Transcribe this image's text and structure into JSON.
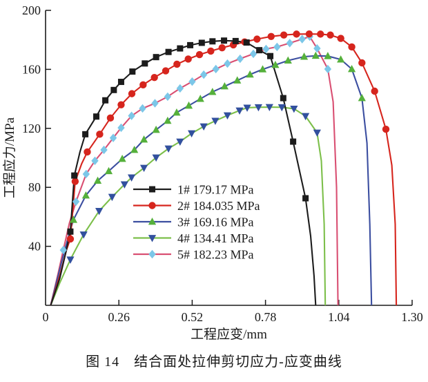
{
  "figure": {
    "caption": "图 14　结合面处拉伸剪切应力-应变曲线"
  },
  "style": {
    "background": "#ffffff",
    "axis_color": "#1a1a1a",
    "text_color": "#1a1a1a"
  },
  "chart_data": {
    "type": "line",
    "title": "",
    "xlabel": "工程应变/mm",
    "ylabel": "工程应力/MPa",
    "xlim": [
      0,
      1.3
    ],
    "ylim": [
      0,
      200
    ],
    "xticks": [
      0,
      0.26,
      0.52,
      0.78,
      1.04,
      1.3
    ],
    "xtick_labels": [
      "0",
      "0.26",
      "0.52",
      "0.78",
      "1.04",
      "1.30"
    ],
    "yticks": [
      40,
      80,
      120,
      160,
      200
    ],
    "ytick_labels": [
      "40",
      "80",
      "120",
      "160",
      "200"
    ],
    "grid": false,
    "legend_position": "inside-center-left",
    "series": [
      {
        "name": "5# 182.23 MPa",
        "sample": "5#",
        "peak_mpa": 182.23,
        "line_color": "#d94f72",
        "marker_color": "#7cc7e8",
        "marker": "diamond",
        "points": [
          [
            0.018,
            0,
            0
          ],
          [
            0.045,
            22,
            0
          ],
          [
            0.063,
            37.5,
            1
          ],
          [
            0.085,
            56,
            0
          ],
          [
            0.108,
            70.3,
            1
          ],
          [
            0.144,
            89,
            1
          ],
          [
            0.175,
            98,
            1
          ],
          [
            0.207,
            105.4,
            1
          ],
          [
            0.24,
            113.5,
            1
          ],
          [
            0.268,
            120.4,
            1
          ],
          [
            0.305,
            128.5,
            1
          ],
          [
            0.344,
            133.5,
            1
          ],
          [
            0.388,
            137,
            1
          ],
          [
            0.433,
            141.5,
            1
          ],
          [
            0.477,
            147.1,
            1
          ],
          [
            0.52,
            151.7,
            1
          ],
          [
            0.561,
            156.4,
            1
          ],
          [
            0.604,
            160.2,
            1
          ],
          [
            0.645,
            163.9,
            1
          ],
          [
            0.69,
            167.2,
            1
          ],
          [
            0.737,
            170.5,
            1
          ],
          [
            0.782,
            173.8,
            1
          ],
          [
            0.821,
            175.2,
            1
          ],
          [
            0.866,
            177.8,
            1
          ],
          [
            0.91,
            180.5,
            1
          ],
          [
            0.937,
            182.2,
            1
          ],
          [
            0.963,
            174.2,
            1
          ],
          [
            1.001,
            160.2,
            1
          ],
          [
            1.02,
            138,
            0
          ],
          [
            1.032,
            80,
            0
          ],
          [
            1.037,
            0,
            0
          ]
        ]
      },
      {
        "name": "4# 134.41 MPa",
        "sample": "4#",
        "peak_mpa": 134.41,
        "line_color": "#7cbf4a",
        "marker_color": "#32509e",
        "marker": "triangle-down",
        "points": [
          [
            0.018,
            0,
            0
          ],
          [
            0.05,
            15,
            0
          ],
          [
            0.088,
            31,
            1
          ],
          [
            0.135,
            48,
            1
          ],
          [
            0.19,
            64,
            1
          ],
          [
            0.236,
            73.5,
            1
          ],
          [
            0.28,
            82,
            1
          ],
          [
            0.305,
            86.7,
            1
          ],
          [
            0.349,
            93.2,
            1
          ],
          [
            0.392,
            100.2,
            1
          ],
          [
            0.436,
            106.3,
            1
          ],
          [
            0.477,
            111,
            1
          ],
          [
            0.518,
            116.6,
            1
          ],
          [
            0.561,
            121.3,
            1
          ],
          [
            0.602,
            125.1,
            1
          ],
          [
            0.645,
            128.8,
            1
          ],
          [
            0.688,
            132.1,
            1
          ],
          [
            0.715,
            134,
            1
          ],
          [
            0.755,
            134.3,
            1
          ],
          [
            0.794,
            134.4,
            1
          ],
          [
            0.838,
            134.3,
            1
          ],
          [
            0.881,
            133.3,
            1
          ],
          [
            0.922,
            128.3,
            1
          ],
          [
            0.963,
            117.1,
            1
          ],
          [
            0.978,
            98,
            0
          ],
          [
            0.988,
            55,
            0
          ],
          [
            0.992,
            0,
            0
          ]
        ]
      },
      {
        "name": "3# 169.16 MPa",
        "sample": "3#",
        "peak_mpa": 169.16,
        "line_color": "#3b4ea0",
        "marker_color": "#55b03b",
        "marker": "triangle-up",
        "points": [
          [
            0.018,
            0,
            0
          ],
          [
            0.055,
            28,
            0
          ],
          [
            0.08,
            46,
            0
          ],
          [
            0.099,
            58,
            1
          ],
          [
            0.143,
            74.5,
            1
          ],
          [
            0.185,
            84.5,
            1
          ],
          [
            0.224,
            91,
            1
          ],
          [
            0.272,
            99.3,
            1
          ],
          [
            0.315,
            105.4,
            1
          ],
          [
            0.349,
            112.4,
            1
          ],
          [
            0.392,
            119,
            1
          ],
          [
            0.433,
            125.1,
            1
          ],
          [
            0.465,
            130.7,
            1
          ],
          [
            0.508,
            135.4,
            1
          ],
          [
            0.549,
            140,
            1
          ],
          [
            0.592,
            144.7,
            1
          ],
          [
            0.635,
            148.5,
            1
          ],
          [
            0.68,
            152.5,
            1
          ],
          [
            0.725,
            156.5,
            1
          ],
          [
            0.77,
            160,
            1
          ],
          [
            0.815,
            163,
            1
          ],
          [
            0.86,
            166,
            1
          ],
          [
            0.917,
            168.6,
            1
          ],
          [
            0.958,
            169.2,
            1
          ],
          [
            1.001,
            169,
            1
          ],
          [
            1.047,
            166.7,
            1
          ],
          [
            1.086,
            160.2,
            1
          ],
          [
            1.122,
            140.5,
            1
          ],
          [
            1.14,
            110,
            0
          ],
          [
            1.15,
            55,
            0
          ],
          [
            1.156,
            0,
            0
          ]
        ]
      },
      {
        "name": "2# 184.035 MPa",
        "sample": "2#",
        "peak_mpa": 184.035,
        "line_color": "#d6251d",
        "marker_color": "#d6251d",
        "marker": "circle",
        "points": [
          [
            0.018,
            0,
            0
          ],
          [
            0.05,
            20,
            0
          ],
          [
            0.075,
            38,
            0
          ],
          [
            0.088,
            45,
            1
          ],
          [
            0.105,
            84,
            1
          ],
          [
            0.128,
            96,
            0
          ],
          [
            0.148,
            104,
            1
          ],
          [
            0.192,
            116,
            1
          ],
          [
            0.23,
            127,
            1
          ],
          [
            0.268,
            136,
            1
          ],
          [
            0.306,
            143.5,
            1
          ],
          [
            0.346,
            149.5,
            1
          ],
          [
            0.386,
            154.5,
            1
          ],
          [
            0.426,
            159,
            1
          ],
          [
            0.466,
            163.5,
            1
          ],
          [
            0.506,
            167,
            1
          ],
          [
            0.546,
            170,
            1
          ],
          [
            0.586,
            172.4,
            1
          ],
          [
            0.626,
            174.6,
            1
          ],
          [
            0.666,
            176.6,
            1
          ],
          [
            0.706,
            178.6,
            1
          ],
          [
            0.75,
            180.5,
            1
          ],
          [
            0.8,
            182.3,
            1
          ],
          [
            0.845,
            183.3,
            1
          ],
          [
            0.89,
            183.9,
            1
          ],
          [
            0.935,
            184,
            1
          ],
          [
            0.975,
            183.9,
            1
          ],
          [
            1.01,
            183.3,
            1
          ],
          [
            1.047,
            181,
            1
          ],
          [
            1.086,
            175.2,
            1
          ],
          [
            1.122,
            164.4,
            1
          ],
          [
            1.167,
            145.2,
            1
          ],
          [
            1.207,
            119.4,
            1
          ],
          [
            1.228,
            95,
            0
          ],
          [
            1.24,
            55,
            0
          ],
          [
            1.244,
            0,
            0
          ]
        ]
      },
      {
        "name": "1# 179.17 MPa",
        "sample": "1#",
        "peak_mpa": 179.17,
        "line_color": "#1c1c1c",
        "marker_color": "#1c1c1c",
        "marker": "square",
        "points": [
          [
            0.018,
            0,
            0
          ],
          [
            0.05,
            18,
            0
          ],
          [
            0.072,
            36,
            0
          ],
          [
            0.088,
            50,
            1
          ],
          [
            0.102,
            88,
            1
          ],
          [
            0.122,
            104,
            0
          ],
          [
            0.141,
            116,
            1
          ],
          [
            0.18,
            128,
            1
          ],
          [
            0.212,
            139,
            1
          ],
          [
            0.242,
            146,
            1
          ],
          [
            0.268,
            151.5,
            1
          ],
          [
            0.308,
            158.5,
            1
          ],
          [
            0.352,
            164,
            1
          ],
          [
            0.392,
            168.3,
            1
          ],
          [
            0.436,
            171.8,
            1
          ],
          [
            0.477,
            174.2,
            1
          ],
          [
            0.513,
            176.4,
            1
          ],
          [
            0.554,
            178,
            1
          ],
          [
            0.592,
            179,
            1
          ],
          [
            0.633,
            179.5,
            1
          ],
          [
            0.674,
            179.2,
            1
          ],
          [
            0.713,
            178.2,
            1
          ],
          [
            0.758,
            173,
            1
          ],
          [
            0.797,
            169,
            1
          ],
          [
            0.843,
            140.5,
            1
          ],
          [
            0.878,
            111,
            1
          ],
          [
            0.922,
            72.6,
            1
          ],
          [
            0.94,
            47,
            0
          ],
          [
            0.952,
            20,
            0
          ],
          [
            0.958,
            0,
            0
          ]
        ]
      }
    ],
    "legend_order": [
      "1# 179.17 MPa",
      "2# 184.035 MPa",
      "3# 169.16 MPa",
      "4# 134.41 MPa",
      "5# 182.23 MPa"
    ]
  }
}
